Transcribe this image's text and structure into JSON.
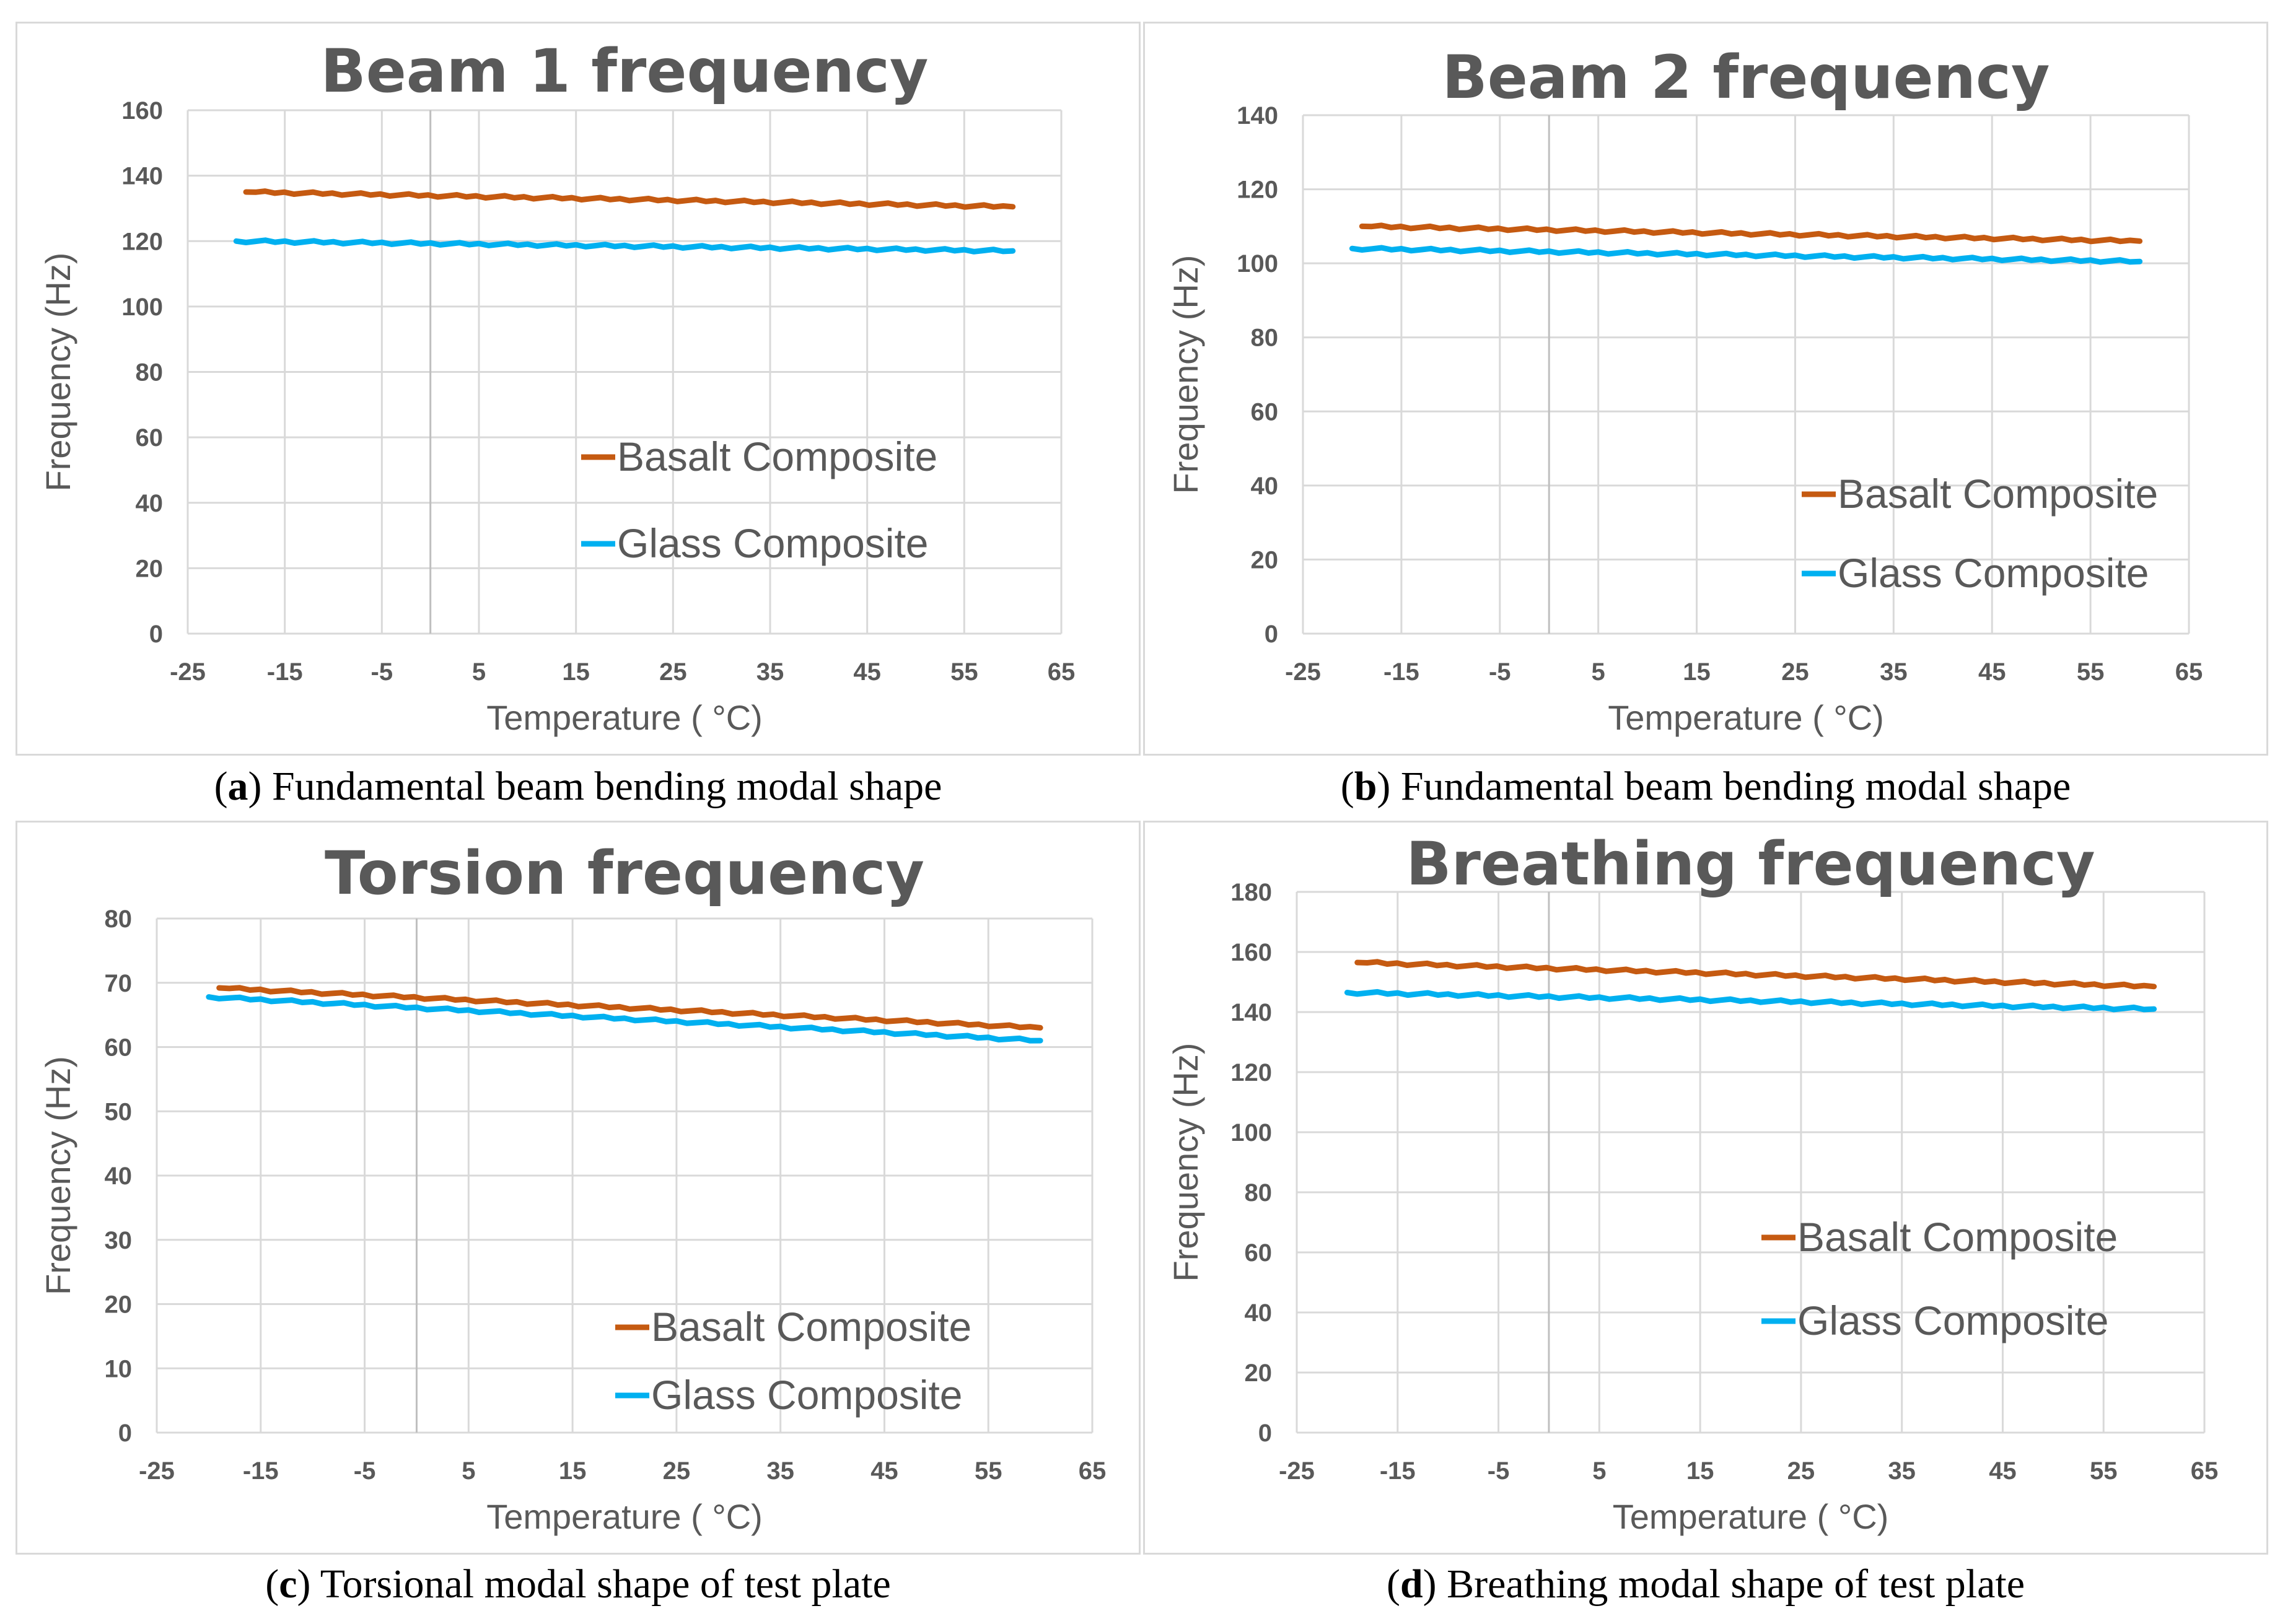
{
  "chart_data": [
    {
      "type": "line",
      "title": "Beam 1  frequency",
      "xlabel": "Temperature ( °C)",
      "ylabel": "Frequency (Hz)",
      "xlim": [
        -25,
        65
      ],
      "ylim": [
        0,
        160
      ],
      "xticks": [
        -25,
        -15,
        -5,
        5,
        15,
        25,
        35,
        45,
        55,
        65
      ],
      "yticks": [
        0,
        20,
        40,
        60,
        80,
        100,
        120,
        140,
        160
      ],
      "legend": "center-right",
      "series": [
        {
          "name": "Basalt Composite",
          "color": "#c55a11",
          "x": [
            -19,
            60
          ],
          "y": [
            135,
            130.5
          ]
        },
        {
          "name": "Glass Composite",
          "color": "#00b0f0",
          "x": [
            -20,
            60
          ],
          "y": [
            120,
            117
          ]
        }
      ],
      "caption_letter": "a",
      "caption": "Fundamental beam bending modal shape"
    },
    {
      "type": "line",
      "title": "Beam 2  frequency",
      "xlabel": "Temperature ( °C)",
      "ylabel": "Frequency (Hz)",
      "xlim": [
        -25,
        65
      ],
      "ylim": [
        0,
        140
      ],
      "xticks": [
        -25,
        -15,
        -5,
        5,
        15,
        25,
        35,
        45,
        55,
        65
      ],
      "yticks": [
        0,
        20,
        40,
        60,
        80,
        100,
        120,
        140
      ],
      "legend": "bottom-right",
      "series": [
        {
          "name": "Basalt Composite",
          "color": "#c55a11",
          "x": [
            -19,
            60
          ],
          "y": [
            110,
            106
          ]
        },
        {
          "name": "Glass Composite",
          "color": "#00b0f0",
          "x": [
            -20,
            60
          ],
          "y": [
            104,
            100.5
          ]
        }
      ],
      "caption_letter": "b",
      "caption": "Fundamental beam bending modal shape"
    },
    {
      "type": "line",
      "title": "Torsion  frequency",
      "xlabel": "Temperature ( °C)",
      "ylabel": "Frequency (Hz)",
      "xlim": [
        -25,
        65
      ],
      "ylim": [
        0,
        80
      ],
      "xticks": [
        -25,
        -15,
        -5,
        5,
        15,
        25,
        35,
        45,
        55,
        65
      ],
      "yticks": [
        0,
        10,
        20,
        30,
        40,
        50,
        60,
        70,
        80
      ],
      "legend": "bottom-right",
      "series": [
        {
          "name": "Basalt Composite",
          "color": "#c55a11",
          "x": [
            -19,
            60
          ],
          "y": [
            69.2,
            63
          ]
        },
        {
          "name": "Glass Composite",
          "color": "#00b0f0",
          "x": [
            -20,
            60
          ],
          "y": [
            67.8,
            61
          ]
        }
      ],
      "caption_letter": "c",
      "caption": "Torsional modal shape of test plate"
    },
    {
      "type": "line",
      "title": "Breathing  frequency",
      "xlabel": "Temperature ( °C)",
      "ylabel": "Frequency (Hz)",
      "xlim": [
        -25,
        65
      ],
      "ylim": [
        0,
        180
      ],
      "xticks": [
        -25,
        -15,
        -5,
        5,
        15,
        25,
        35,
        45,
        55,
        65
      ],
      "yticks": [
        0,
        20,
        40,
        60,
        80,
        100,
        120,
        140,
        160,
        180
      ],
      "legend": "bottom-right",
      "series": [
        {
          "name": "Basalt Composite",
          "color": "#c55a11",
          "x": [
            -19,
            60
          ],
          "y": [
            156.5,
            148.5
          ]
        },
        {
          "name": "Glass Composite",
          "color": "#00b0f0",
          "x": [
            -20,
            60
          ],
          "y": [
            146.5,
            141
          ]
        }
      ],
      "caption_letter": "d",
      "caption": "Breathing modal shape of test plate"
    }
  ]
}
